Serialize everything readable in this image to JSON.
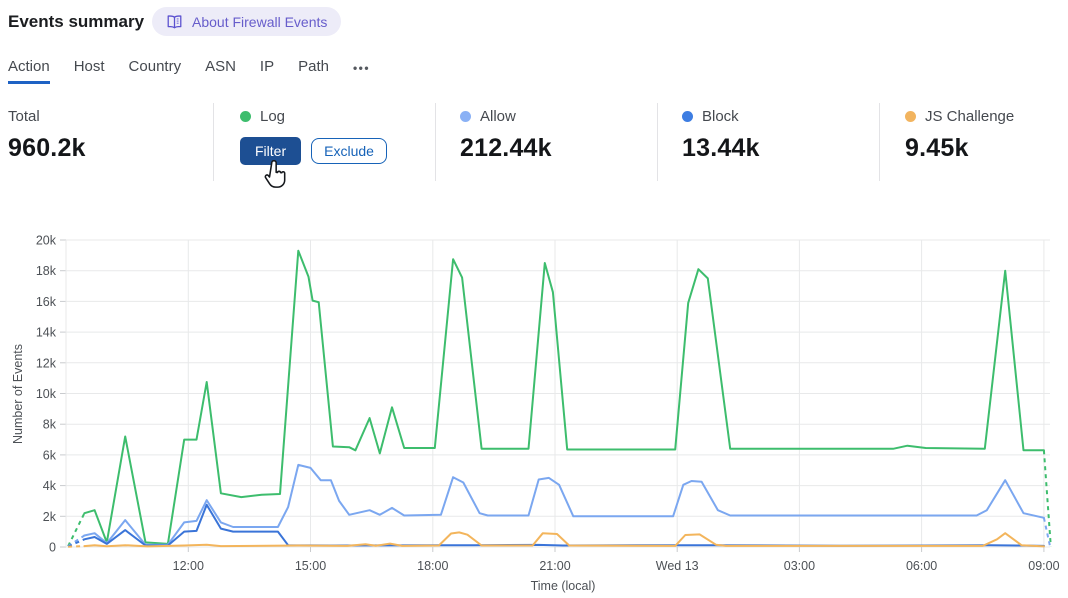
{
  "header": {
    "title": "Events summary",
    "badge_label": "About Firewall Events",
    "badge_icon": "open-book-icon"
  },
  "tabs": {
    "items": [
      {
        "label": "Action",
        "active": true
      },
      {
        "label": "Host",
        "active": false
      },
      {
        "label": "Country",
        "active": false
      },
      {
        "label": "ASN",
        "active": false
      },
      {
        "label": "IP",
        "active": false
      },
      {
        "label": "Path",
        "active": false
      }
    ],
    "more_label": "•••"
  },
  "stats": {
    "columns": [
      {
        "label": "Total",
        "value": "960.2k"
      },
      {
        "label": "Log",
        "dot_color": "#3dbd6d",
        "filter_label": "Filter",
        "exclude_label": "Exclude"
      },
      {
        "label": "Allow",
        "dot_color": "#8ab1f5",
        "value": "212.44k"
      },
      {
        "label": "Block",
        "dot_color": "#3d7de2",
        "value": "13.44k"
      },
      {
        "label": "JS Challenge",
        "dot_color": "#f2b45f",
        "value": "9.45k"
      }
    ]
  },
  "cursor": {
    "icon": "hand-pointer-cursor",
    "over": "Filter"
  },
  "chart_data": {
    "type": "line",
    "xlabel": "Time (local)",
    "ylabel": "Number of Events",
    "ylim": [
      0,
      20000
    ],
    "grid": true,
    "units_note": "x = hours on local clock (24 = Wed 13 00:00); y values in thousands of events",
    "colors": {
      "grid": "#e8e9ea",
      "tick_text": "#4d5156",
      "axis_title": "#4d5156"
    },
    "y_ticks": [
      {
        "v": 0,
        "label": "0"
      },
      {
        "v": 2,
        "label": "2k"
      },
      {
        "v": 4,
        "label": "4k"
      },
      {
        "v": 6,
        "label": "6k"
      },
      {
        "v": 8,
        "label": "8k"
      },
      {
        "v": 10,
        "label": "10k"
      },
      {
        "v": 12,
        "label": "12k"
      },
      {
        "v": 14,
        "label": "14k"
      },
      {
        "v": 16,
        "label": "16k"
      },
      {
        "v": 18,
        "label": "18k"
      },
      {
        "v": 20,
        "label": "20k"
      }
    ],
    "x_ticks": [
      {
        "h": 12,
        "label": "12:00"
      },
      {
        "h": 15,
        "label": "15:00"
      },
      {
        "h": 18,
        "label": "18:00"
      },
      {
        "h": 21,
        "label": "21:00"
      },
      {
        "h": 24,
        "label": "Wed 13"
      },
      {
        "h": 27,
        "label": "03:00"
      },
      {
        "h": 30,
        "label": "06:00"
      },
      {
        "h": 33,
        "label": "09:00"
      }
    ],
    "series": [
      {
        "name": "Log",
        "color": "#3dbd6d",
        "lead_dash": [
          [
            9.05,
            0.05
          ],
          [
            9.45,
            2.2
          ]
        ],
        "points": [
          [
            9.45,
            2.2
          ],
          [
            9.7,
            2.4
          ],
          [
            10.0,
            0.3
          ],
          [
            10.45,
            7.2
          ],
          [
            10.95,
            0.3
          ],
          [
            11.5,
            0.2
          ],
          [
            11.9,
            7.0
          ],
          [
            12.2,
            7.0
          ],
          [
            12.45,
            10.75
          ],
          [
            12.8,
            3.5
          ],
          [
            13.3,
            3.25
          ],
          [
            13.8,
            3.4
          ],
          [
            14.25,
            3.45
          ],
          [
            14.7,
            19.3
          ],
          [
            14.95,
            17.6
          ],
          [
            15.05,
            16.05
          ],
          [
            15.2,
            15.95
          ],
          [
            15.55,
            6.55
          ],
          [
            15.95,
            6.5
          ],
          [
            16.1,
            6.3
          ],
          [
            16.45,
            8.4
          ],
          [
            16.7,
            6.1
          ],
          [
            17.0,
            9.1
          ],
          [
            17.3,
            6.45
          ],
          [
            18.05,
            6.45
          ],
          [
            18.5,
            18.75
          ],
          [
            18.72,
            17.55
          ],
          [
            19.2,
            6.4
          ],
          [
            20.35,
            6.4
          ],
          [
            20.75,
            18.5
          ],
          [
            20.95,
            16.6
          ],
          [
            21.3,
            6.35
          ],
          [
            23.95,
            6.35
          ],
          [
            24.27,
            15.9
          ],
          [
            24.52,
            18.1
          ],
          [
            24.75,
            17.5
          ],
          [
            25.3,
            6.4
          ],
          [
            29.3,
            6.4
          ],
          [
            29.65,
            6.6
          ],
          [
            30.1,
            6.45
          ],
          [
            31.55,
            6.4
          ],
          [
            32.05,
            18.0
          ],
          [
            32.5,
            6.3
          ],
          [
            33.0,
            6.3
          ]
        ],
        "tail_dash": [
          [
            33.0,
            6.3
          ],
          [
            33.17,
            0.05
          ]
        ]
      },
      {
        "name": "Allow",
        "color": "#7ba7f0",
        "lead_dash": [
          [
            9.05,
            0.05
          ],
          [
            9.45,
            0.75
          ]
        ],
        "points": [
          [
            9.45,
            0.75
          ],
          [
            9.7,
            0.9
          ],
          [
            10.0,
            0.25
          ],
          [
            10.45,
            1.75
          ],
          [
            10.95,
            0.15
          ],
          [
            11.5,
            0.15
          ],
          [
            11.9,
            1.6
          ],
          [
            12.2,
            1.7
          ],
          [
            12.45,
            3.05
          ],
          [
            12.8,
            1.6
          ],
          [
            13.1,
            1.3
          ],
          [
            14.2,
            1.3
          ],
          [
            14.45,
            2.6
          ],
          [
            14.7,
            5.35
          ],
          [
            15.0,
            5.15
          ],
          [
            15.25,
            4.35
          ],
          [
            15.5,
            4.35
          ],
          [
            15.7,
            3.0
          ],
          [
            15.95,
            2.1
          ],
          [
            16.45,
            2.4
          ],
          [
            16.7,
            2.1
          ],
          [
            17.0,
            2.55
          ],
          [
            17.3,
            2.05
          ],
          [
            18.2,
            2.1
          ],
          [
            18.5,
            4.55
          ],
          [
            18.75,
            4.2
          ],
          [
            19.15,
            2.2
          ],
          [
            19.35,
            2.05
          ],
          [
            20.35,
            2.05
          ],
          [
            20.6,
            4.4
          ],
          [
            20.85,
            4.5
          ],
          [
            21.1,
            4.05
          ],
          [
            21.45,
            2.0
          ],
          [
            23.9,
            2.0
          ],
          [
            24.15,
            4.05
          ],
          [
            24.35,
            4.3
          ],
          [
            24.6,
            4.25
          ],
          [
            25.0,
            2.4
          ],
          [
            25.3,
            2.05
          ],
          [
            31.35,
            2.05
          ],
          [
            31.6,
            2.4
          ],
          [
            32.05,
            4.35
          ],
          [
            32.5,
            2.2
          ],
          [
            33.0,
            1.9
          ]
        ],
        "tail_dash": [
          [
            33.0,
            1.9
          ],
          [
            33.15,
            0.05
          ]
        ]
      },
      {
        "name": "Block",
        "color": "#3a74d8",
        "lead_dash": [
          [
            9.05,
            0.03
          ],
          [
            9.45,
            0.5
          ]
        ],
        "points": [
          [
            9.45,
            0.5
          ],
          [
            9.7,
            0.65
          ],
          [
            10.0,
            0.2
          ],
          [
            10.45,
            1.1
          ],
          [
            10.95,
            0.1
          ],
          [
            11.5,
            0.1
          ],
          [
            11.9,
            1.0
          ],
          [
            12.2,
            1.05
          ],
          [
            12.45,
            2.75
          ],
          [
            12.8,
            1.2
          ],
          [
            13.1,
            1.0
          ],
          [
            14.2,
            1.0
          ],
          [
            14.45,
            0.12
          ],
          [
            15.5,
            0.1
          ],
          [
            18.3,
            0.12
          ],
          [
            19.0,
            0.12
          ],
          [
            20.6,
            0.14
          ],
          [
            21.2,
            0.1
          ],
          [
            24.0,
            0.12
          ],
          [
            25.0,
            0.12
          ],
          [
            28.0,
            0.08
          ],
          [
            31.7,
            0.12
          ],
          [
            32.4,
            0.1
          ],
          [
            33.0,
            0.07
          ]
        ],
        "tail_dash": []
      },
      {
        "name": "JS Challenge",
        "color": "#f3b55c",
        "lead_dash": [
          [
            9.05,
            0.02
          ],
          [
            9.45,
            0.06
          ]
        ],
        "points": [
          [
            9.45,
            0.06
          ],
          [
            9.7,
            0.12
          ],
          [
            10.0,
            0.05
          ],
          [
            10.45,
            0.12
          ],
          [
            11.0,
            0.04
          ],
          [
            11.9,
            0.1
          ],
          [
            12.45,
            0.15
          ],
          [
            12.8,
            0.06
          ],
          [
            14.7,
            0.1
          ],
          [
            15.9,
            0.07
          ],
          [
            16.35,
            0.18
          ],
          [
            16.6,
            0.08
          ],
          [
            16.95,
            0.22
          ],
          [
            17.25,
            0.07
          ],
          [
            18.15,
            0.1
          ],
          [
            18.45,
            0.88
          ],
          [
            18.65,
            0.95
          ],
          [
            18.85,
            0.8
          ],
          [
            19.2,
            0.1
          ],
          [
            20.45,
            0.1
          ],
          [
            20.7,
            0.9
          ],
          [
            21.05,
            0.85
          ],
          [
            21.35,
            0.1
          ],
          [
            23.95,
            0.07
          ],
          [
            24.2,
            0.78
          ],
          [
            24.55,
            0.82
          ],
          [
            24.95,
            0.15
          ],
          [
            25.2,
            0.07
          ],
          [
            31.5,
            0.07
          ],
          [
            31.85,
            0.5
          ],
          [
            32.05,
            0.9
          ],
          [
            32.45,
            0.12
          ],
          [
            33.0,
            0.04
          ]
        ],
        "tail_dash": []
      }
    ]
  }
}
